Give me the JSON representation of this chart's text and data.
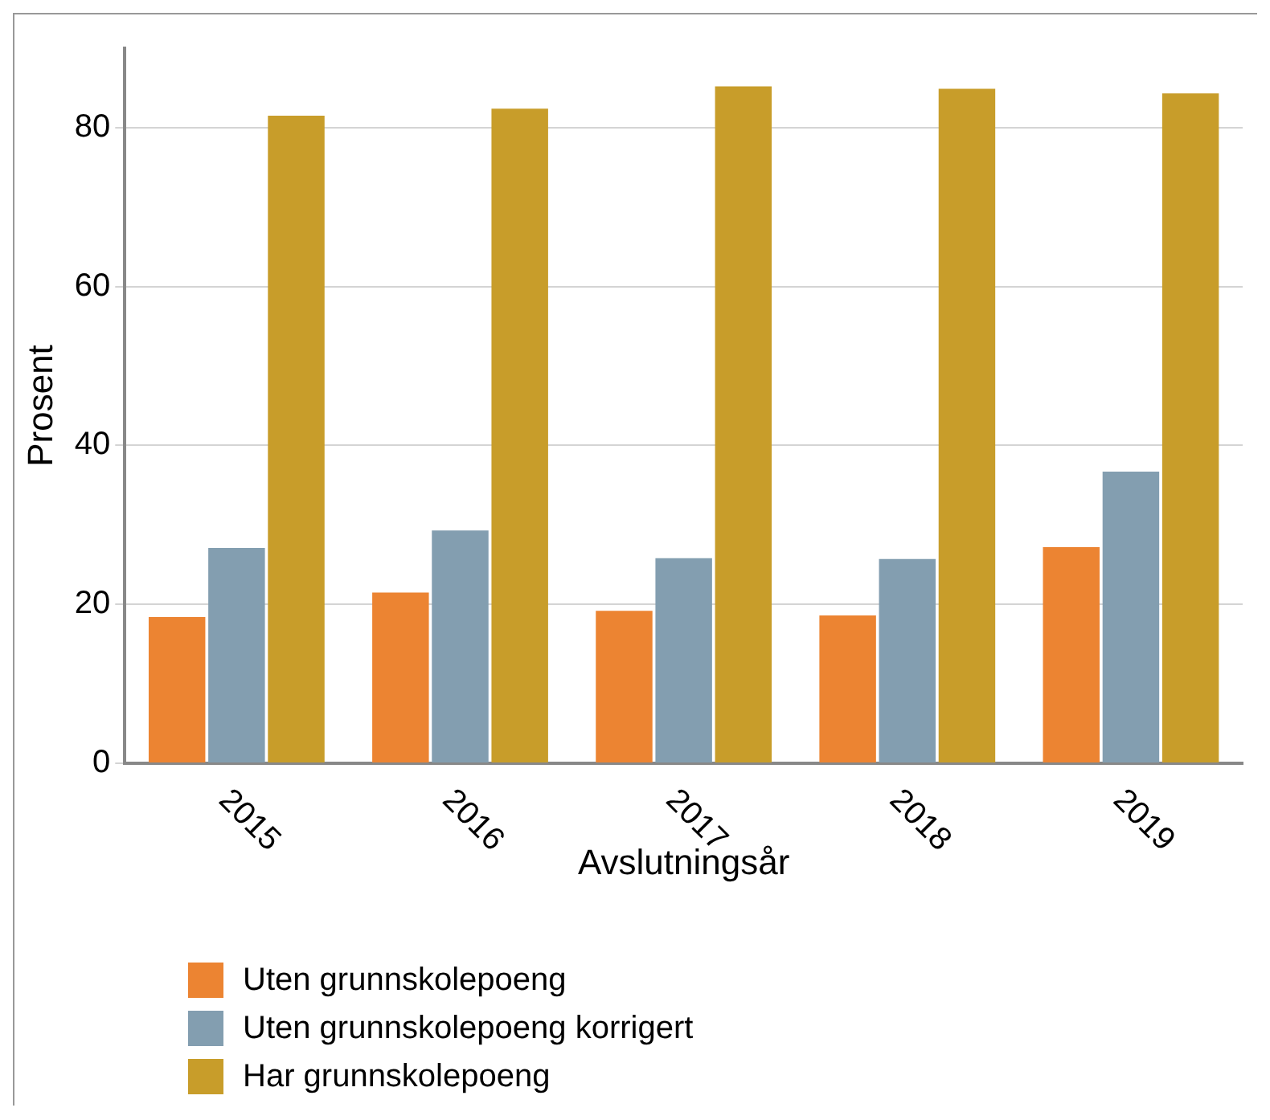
{
  "chart_data": {
    "type": "bar",
    "xlabel": "Avslutningsår",
    "ylabel": "Prosent",
    "categories": [
      "2015",
      "2016",
      "2017",
      "2018",
      "2019"
    ],
    "series": [
      {
        "name": "Uten grunnskolepoeng",
        "color": "#ec8432",
        "values": [
          18.4,
          21.5,
          19.2,
          18.6,
          27.2
        ]
      },
      {
        "name": "Uten grunnskolepoeng korrigert",
        "color": "#839eb0",
        "values": [
          27.1,
          29.3,
          25.8,
          25.7,
          36.7
        ]
      },
      {
        "name": "Har grunnskolepoeng",
        "color": "#c89d2a",
        "values": [
          81.5,
          82.4,
          85.2,
          84.9,
          84.3
        ]
      }
    ],
    "ylim": [
      0,
      90
    ],
    "yticks": [
      0,
      20,
      40,
      60,
      80
    ],
    "grid": "y",
    "legend": "bottom left"
  }
}
